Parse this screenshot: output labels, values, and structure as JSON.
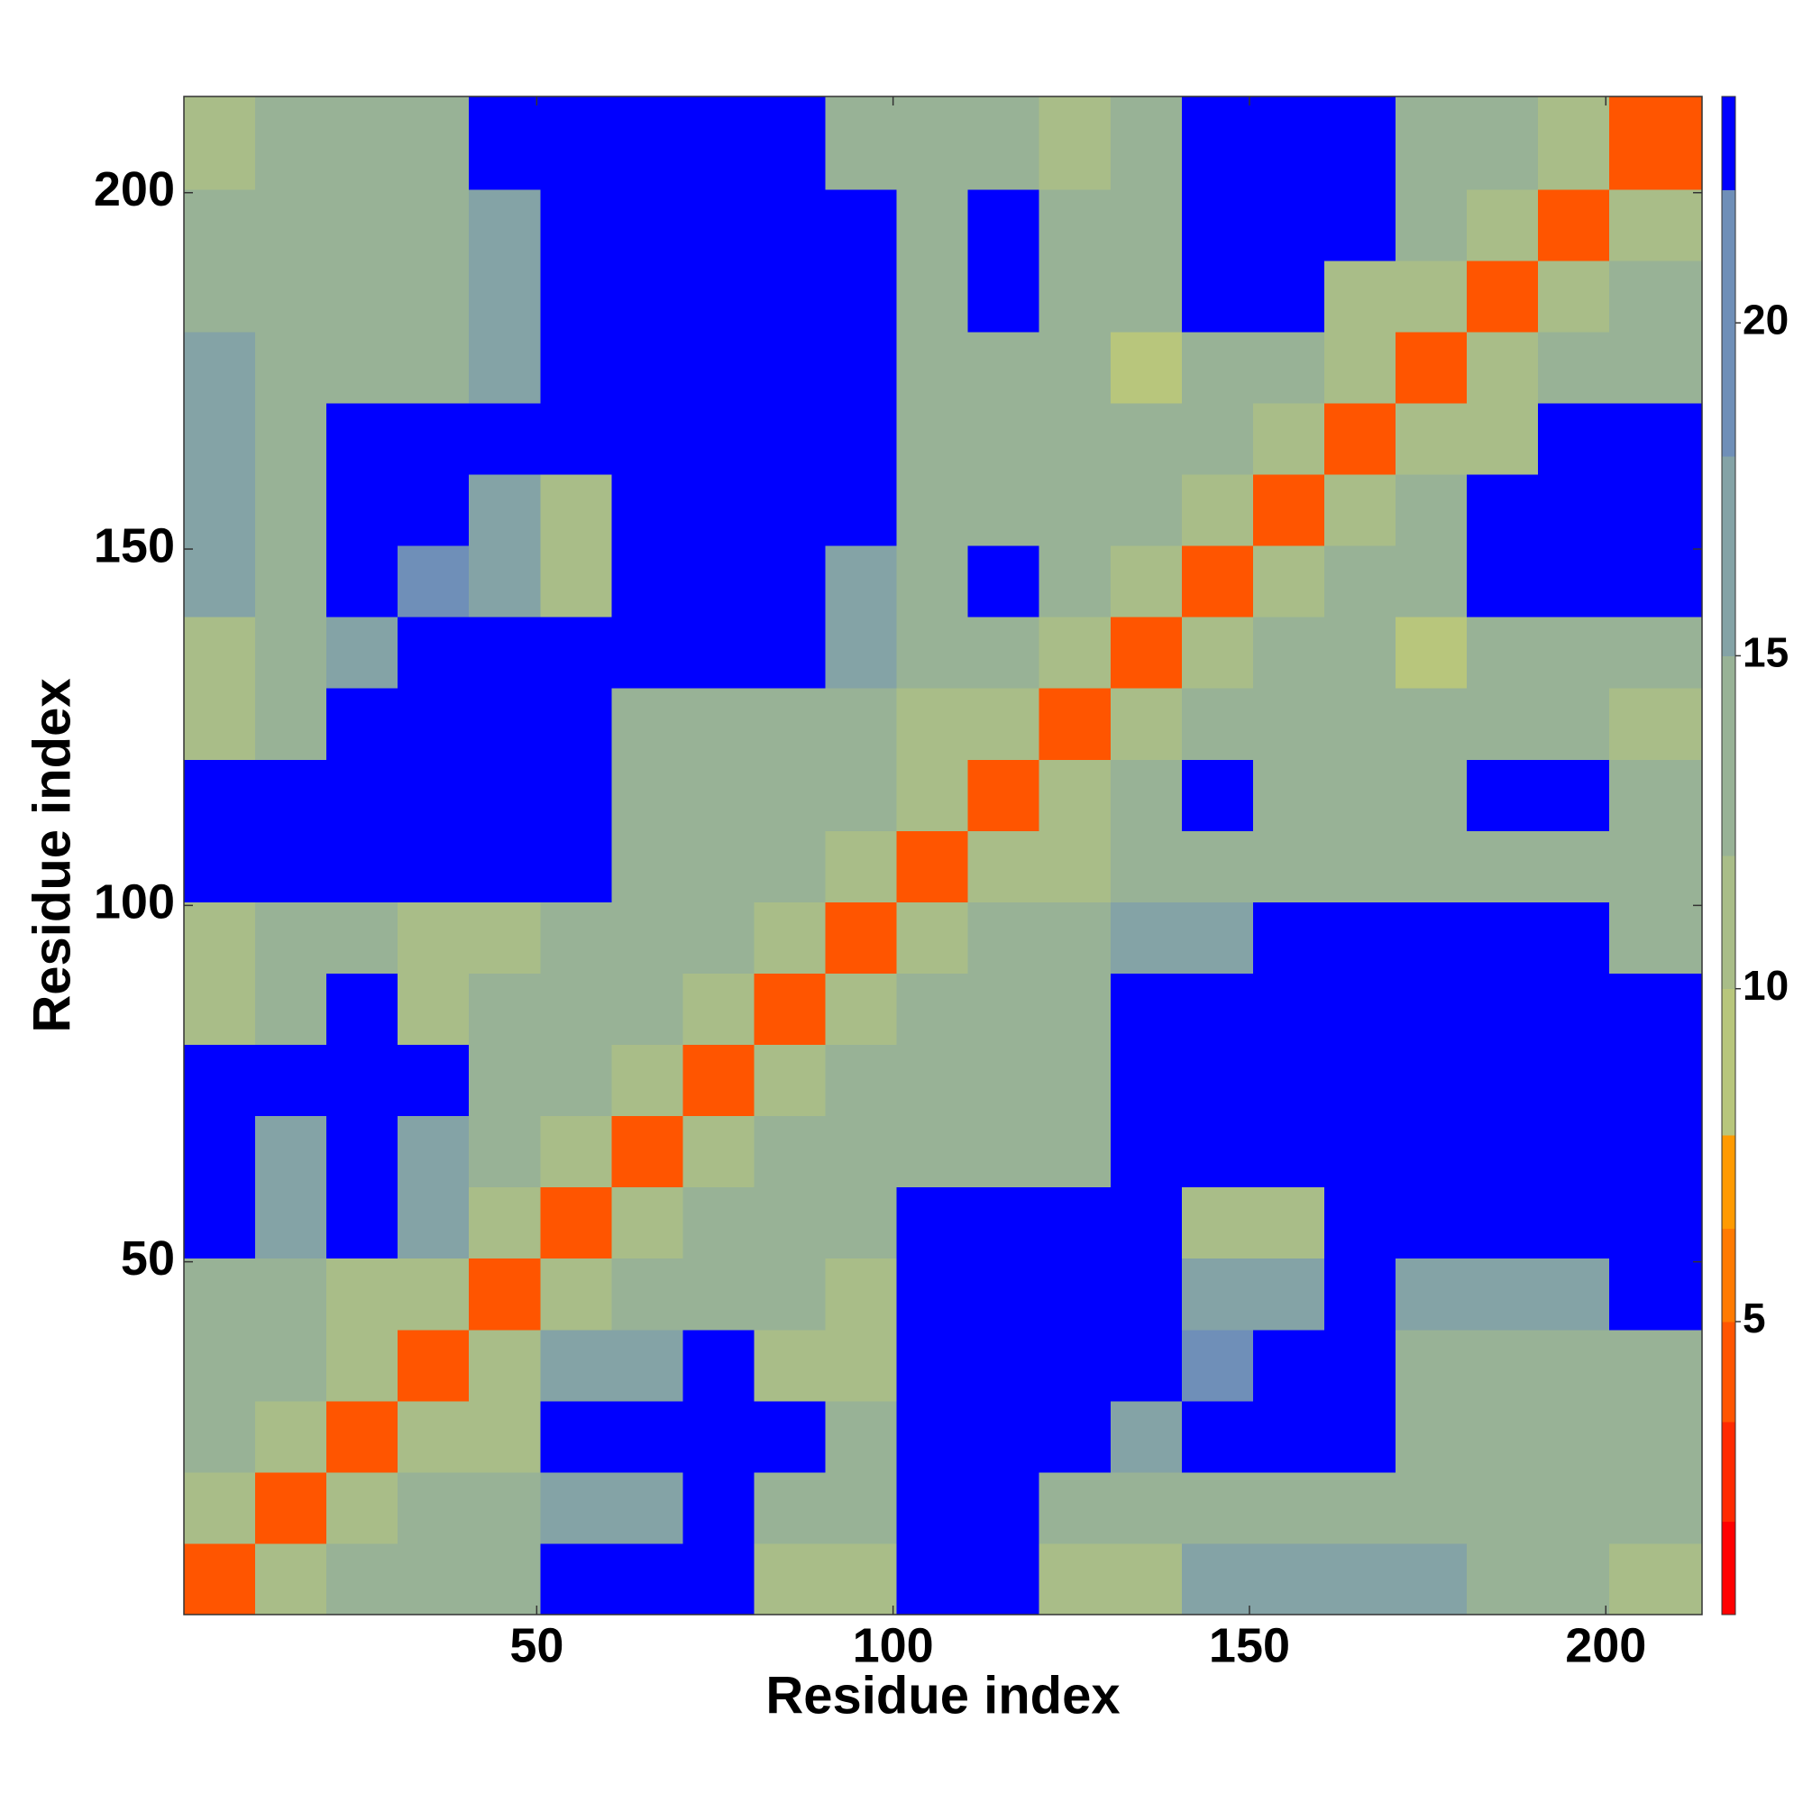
{
  "chart_data": {
    "type": "heatmap",
    "xlabel": "Residue index",
    "ylabel": "Residue index",
    "xlim": [
      0.5,
      213.5
    ],
    "ylim": [
      0.5,
      213.5
    ],
    "xticks": [
      50,
      100,
      150,
      200
    ],
    "yticks": [
      50,
      100,
      150,
      200
    ],
    "x_edges": [
      0.5,
      10.5,
      20.5,
      30.5,
      40.5,
      50.5,
      60.5,
      70.5,
      80.5,
      90.5,
      100.5,
      110.5,
      120.5,
      130.5,
      140.5,
      150.5,
      160.5,
      170.5,
      180.5,
      190.5,
      200.5,
      213.5
    ],
    "y_edges": [
      0.5,
      10.5,
      20.5,
      30.5,
      40.5,
      50.5,
      60.5,
      70.5,
      80.5,
      90.5,
      100.5,
      110.5,
      120.5,
      130.5,
      140.5,
      150.5,
      160.5,
      170.5,
      180.5,
      190.5,
      200.5,
      213.5
    ],
    "values": [
      [
        4,
        11,
        13,
        13,
        13,
        23,
        23,
        23,
        10,
        10,
        23,
        23,
        11,
        11,
        15,
        15,
        15,
        15,
        13,
        13,
        10
      ],
      [
        11,
        4,
        11,
        12,
        12,
        16,
        16,
        23,
        12,
        12,
        23,
        23,
        12,
        12,
        12,
        12,
        12,
        12,
        12,
        13,
        13
      ],
      [
        13,
        11,
        4,
        11,
        11,
        23,
        23,
        23,
        23,
        12,
        23,
        23,
        23,
        15,
        23,
        23,
        23,
        13,
        13,
        13,
        13
      ],
      [
        13,
        12,
        11,
        4,
        11,
        16,
        16,
        23,
        11,
        11,
        23,
        23,
        23,
        23,
        18,
        23,
        23,
        13,
        13,
        13,
        13
      ],
      [
        13,
        12,
        11,
        11,
        4,
        11,
        13,
        13,
        13,
        11,
        23,
        23,
        23,
        23,
        15,
        15,
        23,
        16,
        16,
        16,
        23
      ],
      [
        23,
        16,
        23,
        16,
        11,
        4,
        11,
        12,
        12,
        12,
        23,
        23,
        23,
        23,
        11,
        11,
        23,
        23,
        23,
        23,
        23
      ],
      [
        23,
        16,
        23,
        16,
        13,
        11,
        4,
        11,
        13,
        13,
        13,
        13,
        13,
        23,
        23,
        23,
        23,
        23,
        23,
        23,
        23
      ],
      [
        23,
        23,
        23,
        23,
        13,
        12,
        11,
        4,
        11,
        12,
        12,
        12,
        12,
        23,
        23,
        23,
        23,
        23,
        23,
        23,
        23
      ],
      [
        10,
        12,
        23,
        11,
        13,
        12,
        13,
        11,
        4,
        11,
        12,
        12,
        13,
        23,
        23,
        23,
        23,
        23,
        23,
        23,
        23
      ],
      [
        10,
        12,
        12,
        11,
        11,
        12,
        13,
        12,
        11,
        4,
        11,
        12,
        12,
        15,
        15,
        23,
        23,
        23,
        23,
        23,
        13
      ],
      [
        23,
        23,
        23,
        23,
        23,
        23,
        13,
        12,
        12,
        11,
        4,
        11,
        11,
        13,
        13,
        13,
        12,
        13,
        13,
        13,
        13
      ],
      [
        23,
        23,
        23,
        23,
        23,
        23,
        13,
        12,
        12,
        12,
        11,
        4,
        11,
        12,
        23,
        14,
        14,
        14,
        23,
        23,
        12
      ],
      [
        11,
        12,
        23,
        23,
        23,
        23,
        13,
        12,
        13,
        12,
        11,
        11,
        4,
        11,
        13,
        13,
        12,
        12,
        12,
        12,
        10
      ],
      [
        11,
        12,
        15,
        23,
        23,
        23,
        23,
        23,
        23,
        15,
        13,
        12,
        11,
        4,
        11,
        12,
        12,
        9,
        13,
        13,
        13
      ],
      [
        15,
        12,
        23,
        18,
        15,
        11,
        23,
        23,
        23,
        15,
        13,
        23,
        13,
        11,
        4,
        11,
        13,
        13,
        23,
        23,
        23
      ],
      [
        15,
        12,
        23,
        23,
        15,
        11,
        23,
        23,
        23,
        23,
        13,
        14,
        13,
        12,
        11,
        4,
        11,
        12,
        23,
        23,
        23
      ],
      [
        15,
        12,
        23,
        23,
        23,
        23,
        23,
        23,
        23,
        23,
        12,
        14,
        12,
        12,
        13,
        11,
        4,
        11,
        11,
        23,
        23
      ],
      [
        15,
        12,
        13,
        13,
        16,
        23,
        23,
        23,
        23,
        23,
        13,
        14,
        12,
        9,
        13,
        12,
        11,
        4,
        11,
        12,
        12
      ],
      [
        13,
        12,
        13,
        13,
        16,
        23,
        23,
        23,
        23,
        23,
        13,
        23,
        12,
        13,
        23,
        23,
        11,
        11,
        4,
        11,
        12
      ],
      [
        13,
        13,
        13,
        13,
        16,
        23,
        23,
        23,
        23,
        23,
        13,
        23,
        12,
        13,
        23,
        23,
        23,
        12,
        11,
        4,
        11
      ],
      [
        10,
        13,
        13,
        13,
        23,
        23,
        23,
        23,
        23,
        13,
        13,
        12,
        10,
        13,
        23,
        23,
        23,
        12,
        12,
        11,
        4
      ]
    ],
    "colorbar": {
      "levels": [
        0.6,
        2,
        3.5,
        5,
        6.4,
        7.8,
        10,
        12,
        15,
        18,
        22,
        23.4
      ],
      "colors": [
        "#ff0000",
        "#ff2a00",
        "#ff5500",
        "#ff7a00",
        "#ff9a00",
        "#b8c67c",
        "#a9bd88",
        "#98b296",
        "#84a3a6",
        "#6f8fb8",
        "#0000ff"
      ],
      "ticks": [
        5,
        10,
        15,
        20
      ]
    }
  }
}
